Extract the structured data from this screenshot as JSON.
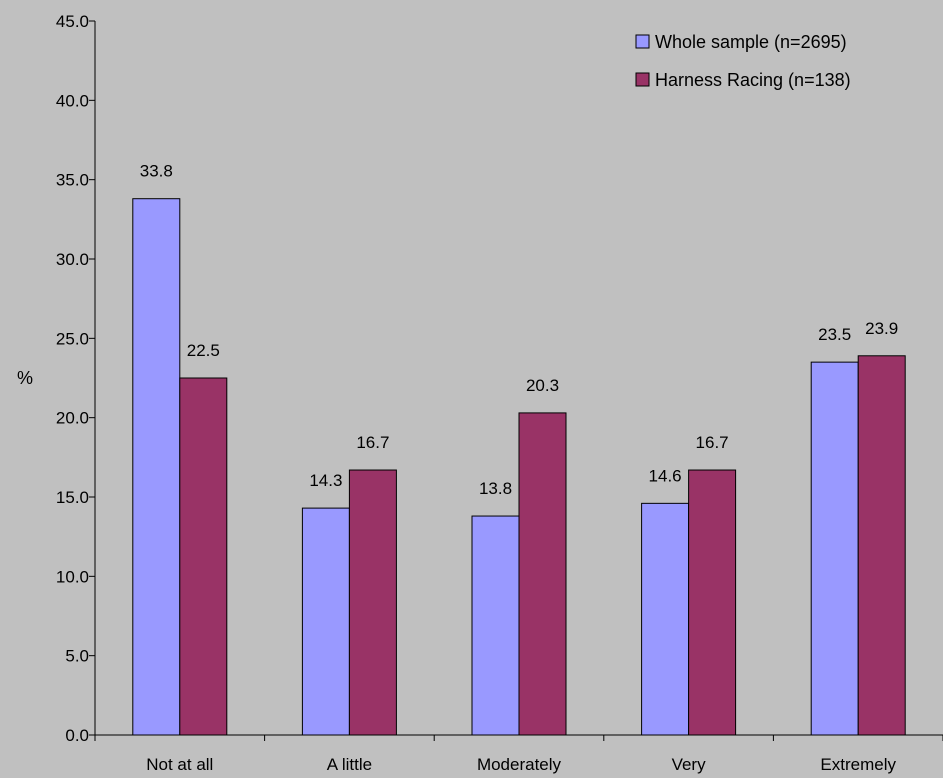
{
  "chart_data": {
    "type": "bar",
    "ylabel": "%",
    "ylim": [
      0,
      45
    ],
    "yticks": [
      "0.0",
      "5.0",
      "10.0",
      "15.0",
      "20.0",
      "25.0",
      "30.0",
      "35.0",
      "40.0",
      "45.0"
    ],
    "categories": [
      "Not at all",
      "A little",
      "Moderately",
      "Very",
      "Extremely"
    ],
    "grid": false,
    "legend_position": "top-right",
    "series": [
      {
        "name": "Whole sample (n=2695)",
        "color": "#9999ff",
        "values": [
          33.8,
          14.3,
          13.8,
          14.6,
          23.5
        ],
        "labels": [
          "33.8",
          "14.3",
          "13.8",
          "14.6",
          "23.5"
        ]
      },
      {
        "name": "Harness Racing (n=138)",
        "color": "#993366",
        "values": [
          22.5,
          16.7,
          20.3,
          16.7,
          23.9
        ],
        "labels": [
          "22.5",
          "16.7",
          "20.3",
          "16.7",
          "23.9"
        ]
      }
    ]
  }
}
